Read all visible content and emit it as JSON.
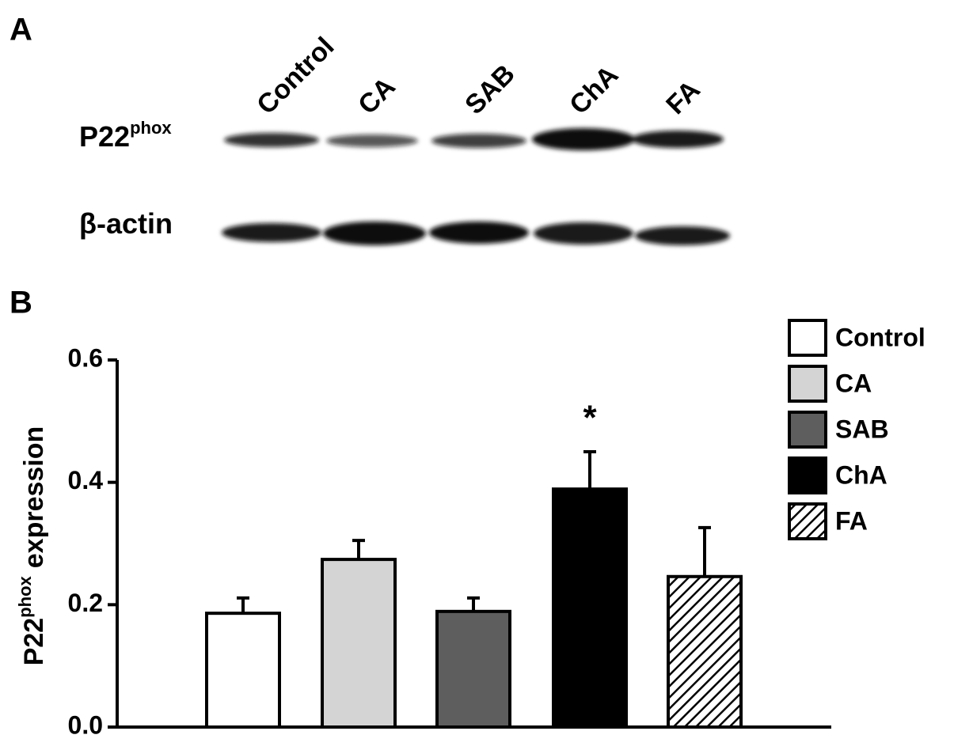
{
  "panels": [
    "A",
    "B"
  ],
  "blot": {
    "lanes": [
      "Control",
      "CA",
      "SAB",
      "ChA",
      "FA"
    ],
    "rows": [
      {
        "label": [
          "P22",
          "phox"
        ]
      },
      {
        "label": [
          "β-actin"
        ]
      }
    ]
  },
  "chart_data": {
    "type": "bar",
    "y_label": [
      "P22",
      "phox",
      "expression"
    ],
    "categories": [
      "Control",
      "CA",
      "SAB",
      "ChA",
      "FA"
    ],
    "values": [
      0.186,
      0.274,
      0.189,
      0.389,
      0.246
    ],
    "errors": [
      0.025,
      0.031,
      0.022,
      0.061,
      0.08
    ],
    "colors": [
      "#ffffff",
      "#d4d4d4",
      "#5e5e5e",
      "#000000",
      "#ffffff"
    ],
    "hatch": [
      false,
      false,
      false,
      false,
      true
    ],
    "ylim": [
      0,
      0.6
    ],
    "yticks": [
      {
        "value": 0,
        "label": "0.0"
      },
      0.2,
      0.4,
      0.6
    ],
    "annotations": [
      {
        "text": "*",
        "category": "ChA"
      }
    ]
  }
}
